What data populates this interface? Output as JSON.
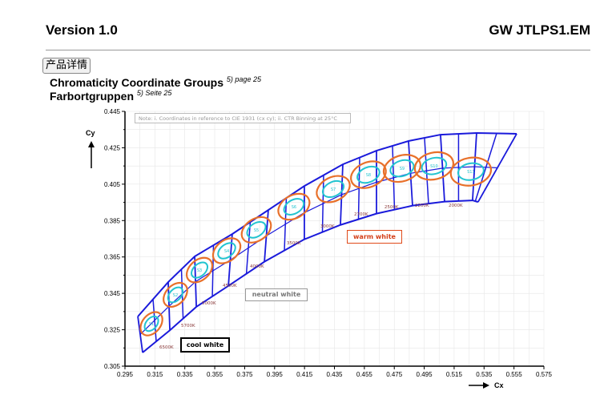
{
  "header": {
    "left": "Version 1.0",
    "right": "GW JTLPS1.EM"
  },
  "title": {
    "line1": "Chromaticity Coordinate Groups",
    "line1_ref": "5) page 25",
    "line2": "Farbortgruppen",
    "line2_ref": "5) Seite 25"
  },
  "overlay_button": "产品详情",
  "chart_data": {
    "type": "scatter",
    "title": "",
    "note": "Note: i. Coordinates in reference to CIE 1931 (cx cy); ii. CTR Binning at 25°C",
    "xlabel": "Cx",
    "ylabel": "Cy",
    "xlim": [
      0.295,
      0.575
    ],
    "ylim": [
      0.305,
      0.445
    ],
    "xticks": [
      "0.295",
      "0.315",
      "0.335",
      "0.355",
      "0.375",
      "0.395",
      "0.415",
      "0.435",
      "0.455",
      "0.475",
      "0.495",
      "0.515",
      "0.535",
      "0.555",
      "0.575"
    ],
    "yticks": [
      "0.445",
      "0.425",
      "0.405",
      "0.385",
      "0.365",
      "0.345",
      "0.325",
      "0.305"
    ],
    "grid": true,
    "region_top": [
      [
        0.3036,
        0.3323
      ],
      [
        0.3239,
        0.3512
      ],
      [
        0.3416,
        0.3653
      ],
      [
        0.3667,
        0.3776
      ],
      [
        0.3908,
        0.3908
      ],
      [
        0.4149,
        0.404
      ],
      [
        0.4406,
        0.4159
      ],
      [
        0.4631,
        0.4234
      ],
      [
        0.4845,
        0.4287
      ],
      [
        0.5059,
        0.4322
      ],
      [
        0.53,
        0.4331
      ],
      [
        0.5568,
        0.4327
      ]
    ],
    "region_bottom": [
      [
        0.3068,
        0.3125
      ],
      [
        0.325,
        0.3247
      ],
      [
        0.3427,
        0.3376
      ],
      [
        0.3641,
        0.3491
      ],
      [
        0.3882,
        0.3624
      ],
      [
        0.4149,
        0.3747
      ],
      [
        0.439,
        0.3826
      ],
      [
        0.4631,
        0.3888
      ],
      [
        0.4872,
        0.3932
      ],
      [
        0.5086,
        0.3954
      ],
      [
        0.5273,
        0.3961
      ],
      [
        0.531,
        0.3952
      ]
    ],
    "groups": [
      {
        "name": "S1",
        "x": 0.3127,
        "y": 0.3283
      },
      {
        "name": "S2",
        "x": 0.3287,
        "y": 0.3442
      },
      {
        "name": "S3",
        "x": 0.3448,
        "y": 0.3578
      },
      {
        "name": "S4",
        "x": 0.363,
        "y": 0.3684
      },
      {
        "name": "S5",
        "x": 0.3828,
        "y": 0.3799
      },
      {
        "name": "S6",
        "x": 0.4079,
        "y": 0.3926
      },
      {
        "name": "S7",
        "x": 0.4342,
        "y": 0.4023
      },
      {
        "name": "S8",
        "x": 0.4577,
        "y": 0.4102
      },
      {
        "name": "S9",
        "x": 0.4802,
        "y": 0.4137
      },
      {
        "name": "S10",
        "x": 0.5016,
        "y": 0.415
      },
      {
        "name": "S11",
        "x": 0.5262,
        "y": 0.4119
      }
    ],
    "cct_labels": [
      {
        "text": "6500K",
        "x": 0.318,
        "y": 0.3147
      },
      {
        "text": "5700K",
        "x": 0.3325,
        "y": 0.3266
      },
      {
        "text": "5000K",
        "x": 0.3464,
        "y": 0.3389
      },
      {
        "text": "4500K",
        "x": 0.3603,
        "y": 0.3486
      },
      {
        "text": "4000K",
        "x": 0.3785,
        "y": 0.3591
      },
      {
        "text": "3500K",
        "x": 0.4031,
        "y": 0.3719
      },
      {
        "text": "3000K",
        "x": 0.4256,
        "y": 0.3811
      },
      {
        "text": "2700K",
        "x": 0.4481,
        "y": 0.3878
      },
      {
        "text": "2500K",
        "x": 0.4684,
        "y": 0.3917
      },
      {
        "text": "2200K",
        "x": 0.4888,
        "y": 0.3926
      },
      {
        "text": "2000K",
        "x": 0.5113,
        "y": 0.3926
      }
    ],
    "zones": {
      "warm": "warm white",
      "neutral": "neutral white",
      "cool": "cool white"
    },
    "colors": {
      "region": "#1a1adb",
      "outer_ellipse": "#e8702a",
      "inner_ellipse": "#22c4d0",
      "cct": "#8b3a3a"
    }
  }
}
